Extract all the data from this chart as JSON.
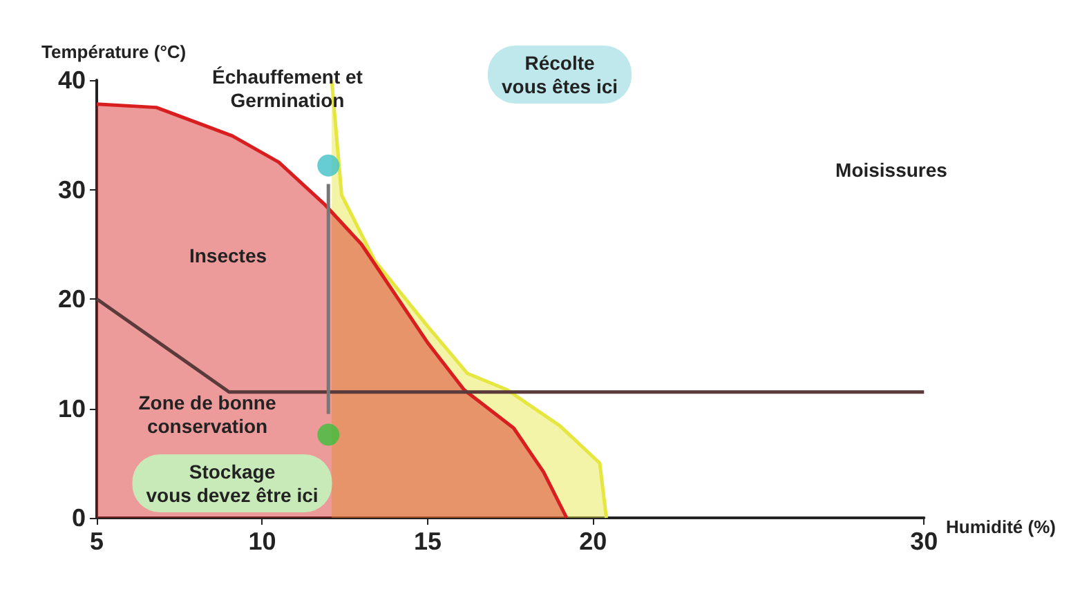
{
  "chart_data": {
    "type": "line",
    "xlabel": "Humidité (%)",
    "ylabel": "Température (°C)",
    "xlim": [
      5,
      30
    ],
    "xticks": [
      5,
      10,
      15,
      20,
      30
    ],
    "ylim": [
      0,
      40
    ],
    "yticks": [
      0,
      10,
      20,
      30,
      40
    ],
    "grid": false,
    "series": [
      {
        "type": "area",
        "color": "#e6e640",
        "x": [
          12.1,
          12.4,
          13.4,
          15,
          16.2,
          17.4,
          19,
          20.2,
          20.4
        ],
        "values": [
          40,
          29.5,
          23.5,
          17.5,
          13.2,
          11.7,
          8.4,
          5,
          0
        ]
      },
      {
        "type": "area",
        "color": "#d81e1e",
        "x": [
          5,
          6.8,
          9.1,
          10.5,
          11.9,
          13,
          14,
          15,
          16.1,
          17.6,
          18.5,
          19.2
        ],
        "values": [
          37.8,
          37.5,
          34.9,
          32.5,
          28.6,
          25,
          20.5,
          16,
          11.7,
          8.2,
          4.2,
          0
        ]
      },
      {
        "type": "line",
        "color": "#5a3a3a",
        "x": [
          5,
          9,
          30
        ],
        "values": [
          20,
          11.5,
          11.5
        ]
      },
      {
        "type": "line",
        "color": "#777777",
        "x": [
          12,
          12
        ],
        "values": [
          30.5,
          9.5
        ]
      },
      {
        "type": "scatter",
        "color": "#3ec0c8",
        "x": [
          12
        ],
        "values": [
          32.2
        ]
      },
      {
        "type": "scatter",
        "color": "#3cbf3c",
        "x": [
          12
        ],
        "values": [
          7.6
        ]
      }
    ],
    "annotations": [
      "Échauffement et\nGermination",
      "Récolte\nvous êtes ici",
      "Moisissures",
      "Insectes",
      "Zone de bonne\nconservation",
      "Stockage\nvous devez être ici"
    ]
  }
}
